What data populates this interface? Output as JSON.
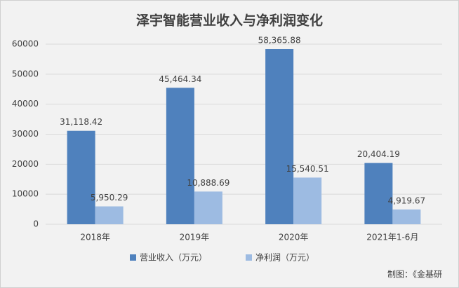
{
  "chart_data": {
    "type": "bar",
    "title": "泽宇智能营业收入与净利润变化",
    "categories": [
      "2018年",
      "2019年",
      "2020年",
      "2021年1-6月"
    ],
    "series": [
      {
        "name": "营业收入（万元）",
        "color": "#4f81bd",
        "values": [
          31118.42,
          45464.34,
          58365.88,
          20404.19
        ],
        "value_labels": [
          "31,118.42",
          "45,464.34",
          "58,365.88",
          "20,404.19"
        ]
      },
      {
        "name": "净利润（万元）",
        "color": "#9dbbe2",
        "values": [
          5950.29,
          10888.69,
          15540.51,
          4919.67
        ],
        "value_labels": [
          "5,950.29",
          "10,888.69",
          "15,540.51",
          "4,919.67"
        ]
      }
    ],
    "ylim": [
      0,
      60000
    ],
    "yticks": [
      0,
      10000,
      20000,
      30000,
      40000,
      50000,
      60000
    ],
    "grid": true,
    "legend": "bottom",
    "source": "制图：《金基研"
  }
}
